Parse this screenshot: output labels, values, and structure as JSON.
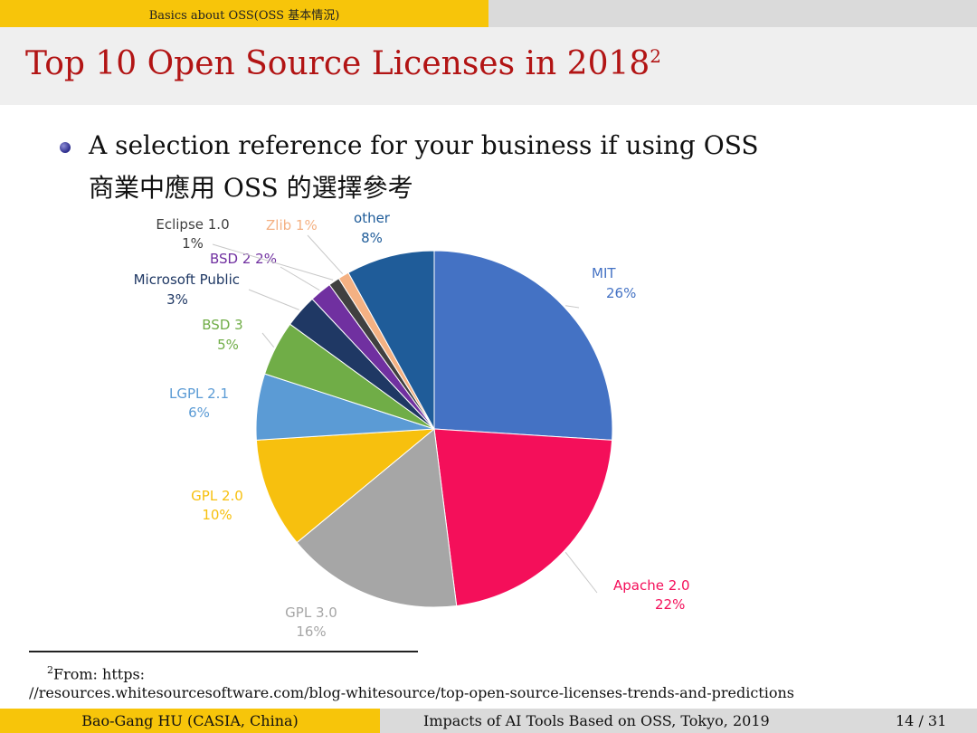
{
  "header": {
    "section": "Basics about OSS(OSS 基本情況)"
  },
  "title": {
    "text": "Top 10 Open Source Licenses in 2018",
    "footnote_mark": "2"
  },
  "bullet": {
    "line1": "A selection reference for your business if using OSS",
    "line2": "商業中應用 OSS 的選擇參考"
  },
  "chart_data": {
    "type": "pie",
    "slices": [
      {
        "label": "MIT",
        "value": 26,
        "value_text": "26%",
        "color": "#4472c4"
      },
      {
        "label": "Apache 2.0",
        "value": 22,
        "value_text": "22%",
        "color": "#f40f5a"
      },
      {
        "label": "GPL 3.0",
        "value": 16,
        "value_text": "16%",
        "color": "#a6a6a6"
      },
      {
        "label": "GPL 2.0",
        "value": 10,
        "value_text": "10%",
        "color": "#f7c00e"
      },
      {
        "label": "LGPL 2.1",
        "value": 6,
        "value_text": "6%",
        "color": "#5b9bd5"
      },
      {
        "label": "BSD 3",
        "value": 5,
        "value_text": "5%",
        "color": "#70ad47"
      },
      {
        "label": "Microsoft Public",
        "value": 3,
        "value_text": "3%",
        "color": "#1f3864"
      },
      {
        "label": "BSD 2",
        "value": 2,
        "value_text": "2%",
        "color": "#7030a0"
      },
      {
        "label": "Eclipse 1.0",
        "value": 1,
        "value_text": "1%",
        "color": "#404040"
      },
      {
        "label": "Zlib",
        "value": 1,
        "value_text": "1%",
        "color": "#f4b183"
      },
      {
        "label": "other",
        "value": 8,
        "value_text": "8%",
        "color": "#1f5c99"
      }
    ]
  },
  "footnote": {
    "mark": "2",
    "line1": "From: https:",
    "line2": "//resources.whitesourcesoftware.com/blog-whitesource/top-open-source-licenses-trends-and-predictions"
  },
  "footer": {
    "author": "Bao-Gang HU (CASIA, China)",
    "talk": "Impacts of AI Tools Based on OSS, Tokyo, 2019",
    "page": "14 / 31"
  }
}
